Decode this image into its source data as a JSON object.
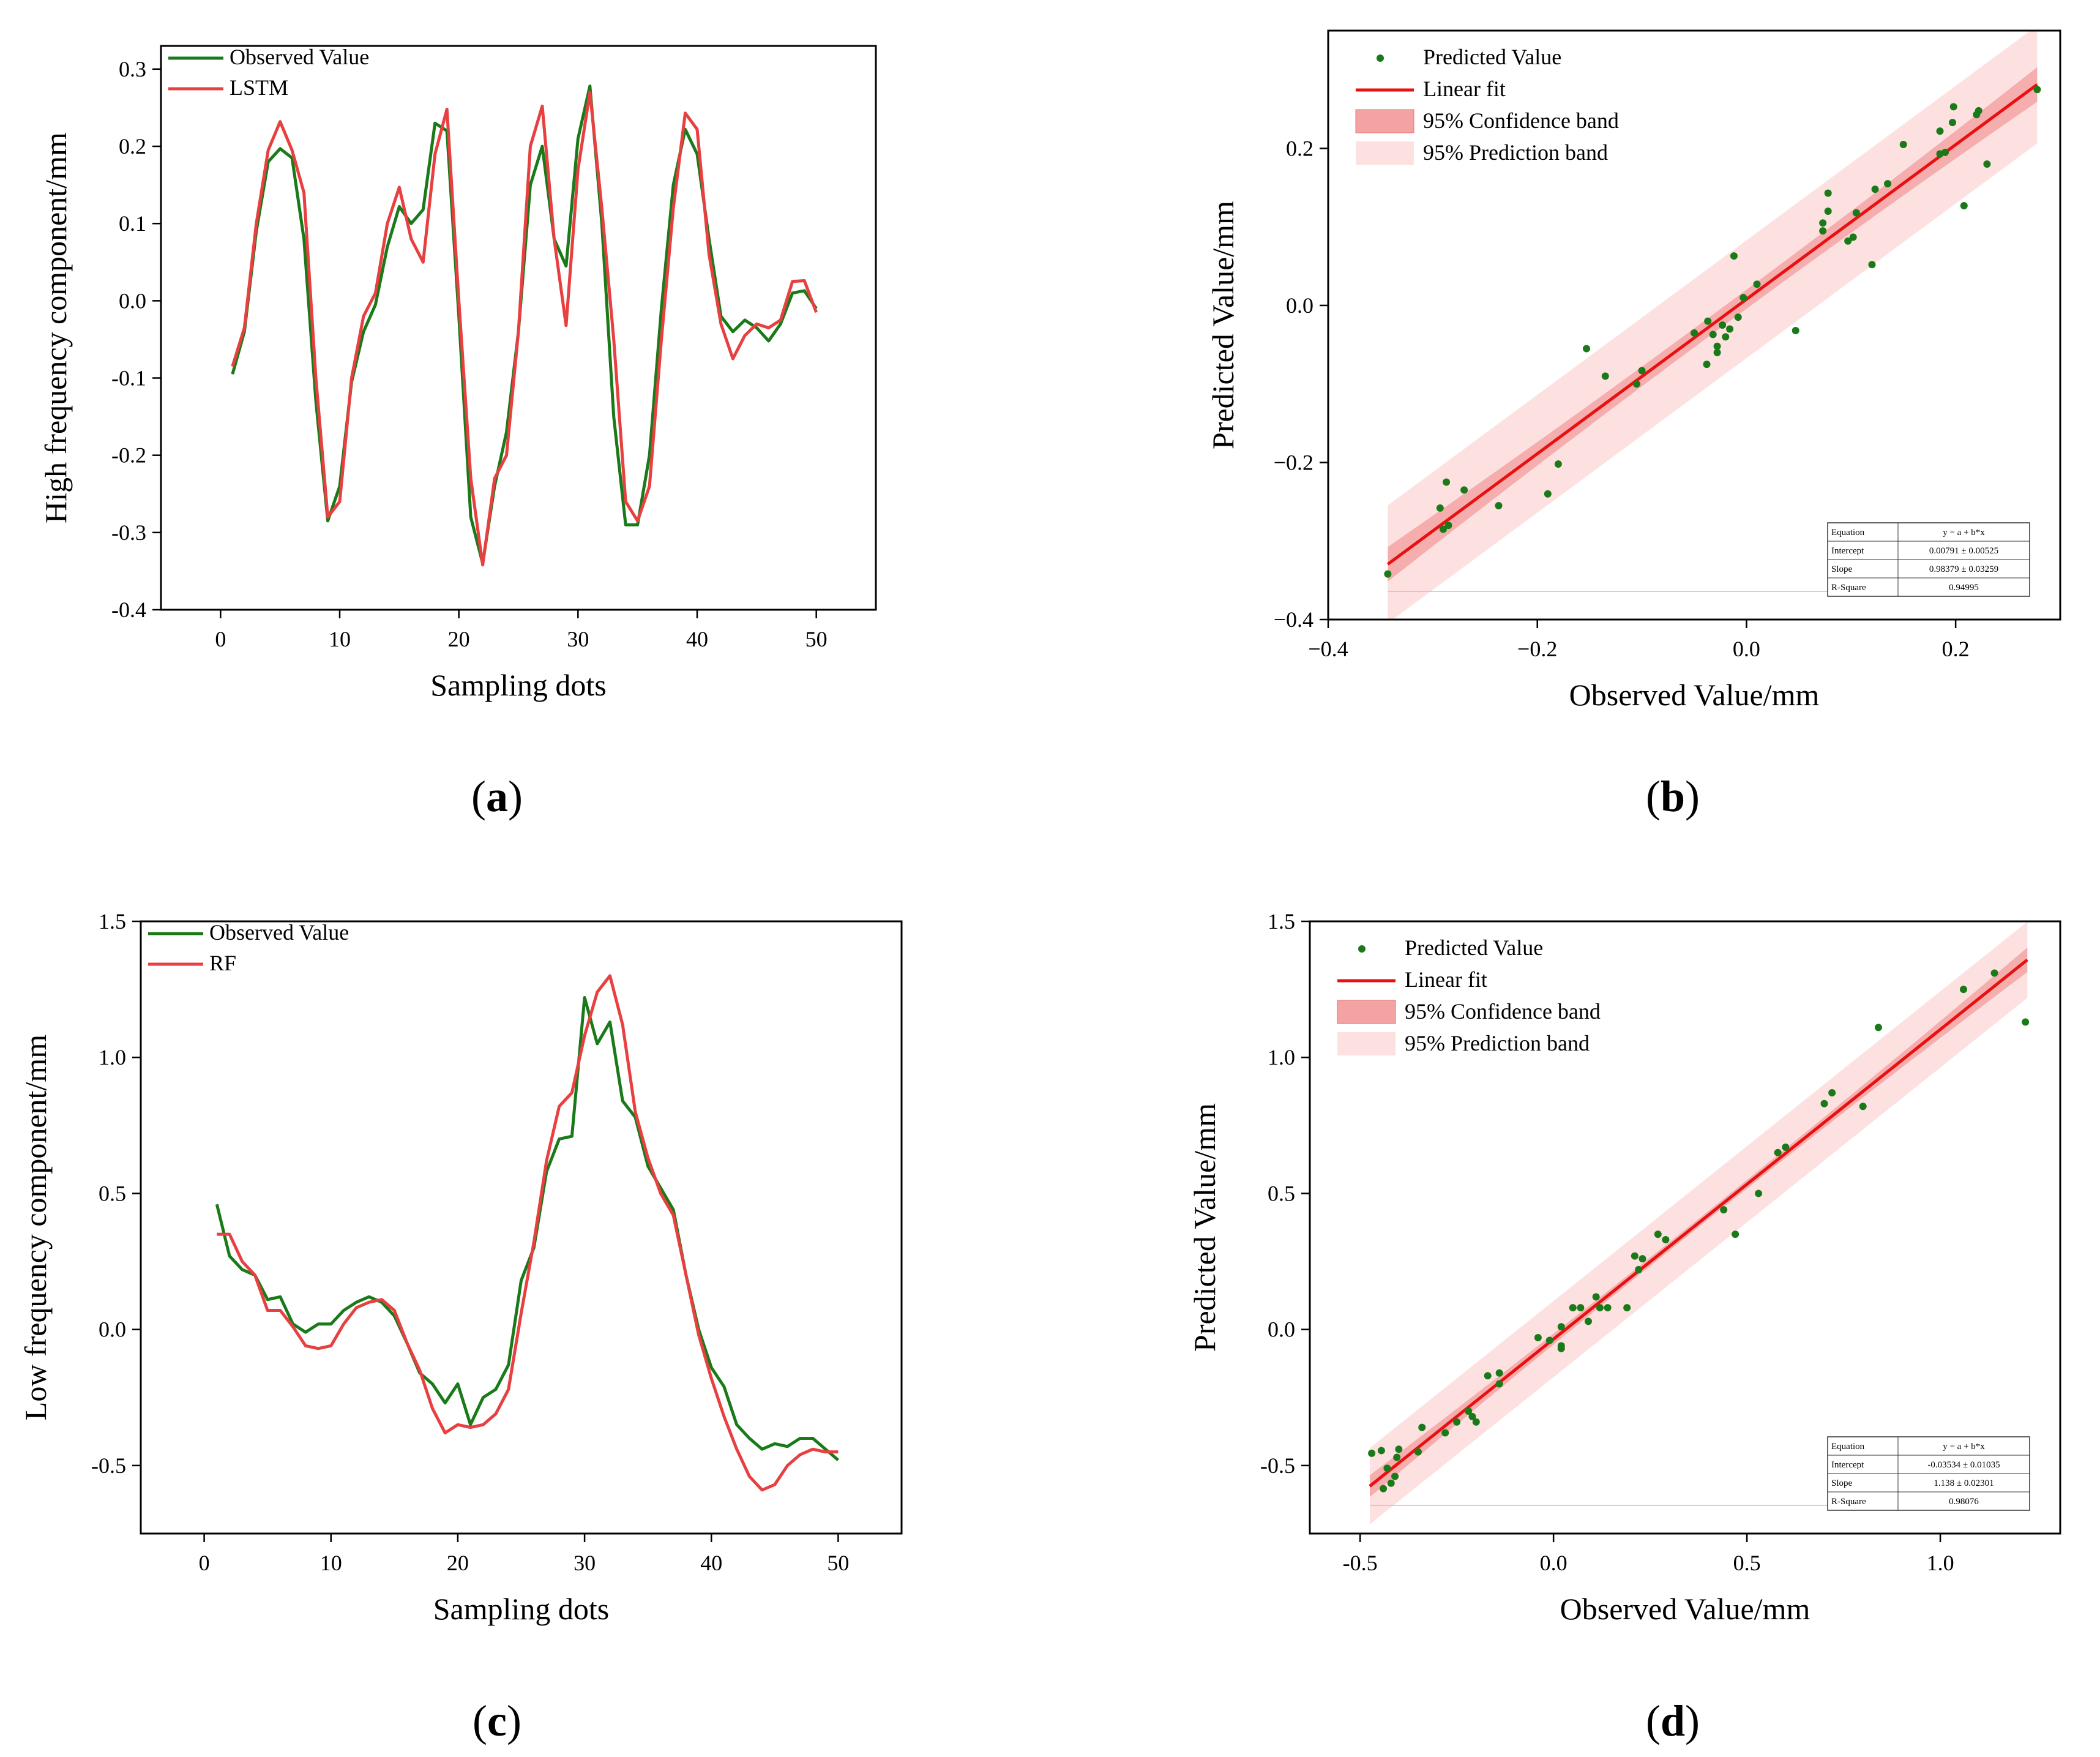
{
  "chart_data": [
    {
      "id": "a",
      "type": "line",
      "panel_label": "(a)",
      "panel_letter": "a",
      "xlabel": "Sampling dots",
      "ylabel": "High frequency component/mm",
      "xlim": [
        -5,
        55
      ],
      "ylim": [
        -0.4,
        0.33
      ],
      "xticks": [
        0,
        10,
        20,
        30,
        40,
        50
      ],
      "yticks": [
        -0.4,
        -0.3,
        -0.2,
        -0.1,
        0.0,
        0.1,
        0.2,
        0.3
      ],
      "ytick_labels": [
        "-0.4",
        "-0.3",
        "-0.2",
        "-0.1",
        "0.0",
        "0.1",
        "0.2",
        "0.3"
      ],
      "x": [
        1,
        2,
        3,
        4,
        5,
        6,
        7,
        8,
        9,
        10,
        11,
        12,
        13,
        14,
        15,
        16,
        17,
        18,
        19,
        20,
        21,
        22,
        23,
        24,
        25,
        26,
        27,
        28,
        29,
        30,
        31,
        32,
        33,
        34,
        35,
        36,
        37,
        38,
        39,
        40,
        41,
        42,
        43,
        44,
        45,
        46,
        47,
        48,
        49,
        50
      ],
      "series": [
        {
          "name": "Observed Value",
          "color": "#1a7a1a",
          "values": [
            -0.095,
            -0.04,
            0.09,
            0.18,
            0.197,
            0.185,
            0.08,
            -0.13,
            -0.285,
            -0.24,
            -0.105,
            -0.04,
            -0.005,
            0.07,
            0.122,
            0.1,
            0.118,
            0.23,
            0.22,
            -0.02,
            -0.28,
            -0.34,
            -0.24,
            -0.17,
            -0.04,
            0.15,
            0.2,
            0.08,
            0.045,
            0.21,
            0.278,
            0.1,
            -0.15,
            -0.29,
            -0.29,
            -0.2,
            -0.01,
            0.15,
            0.222,
            0.19,
            0.08,
            -0.02,
            -0.04,
            -0.025,
            -0.035,
            -0.052,
            -0.03,
            0.01,
            0.013,
            -0.01
          ]
        },
        {
          "name": "LSTM",
          "color": "#e84040",
          "values": [
            -0.085,
            -0.035,
            0.1,
            0.195,
            0.232,
            0.195,
            0.14,
            -0.1,
            -0.28,
            -0.26,
            -0.1,
            -0.02,
            0.01,
            0.1,
            0.147,
            0.08,
            0.05,
            0.19,
            0.248,
            0.0,
            -0.23,
            -0.342,
            -0.23,
            -0.2,
            -0.04,
            0.2,
            0.252,
            0.08,
            -0.032,
            0.17,
            0.27,
            0.12,
            -0.05,
            -0.26,
            -0.285,
            -0.24,
            -0.05,
            0.12,
            0.243,
            0.222,
            0.06,
            -0.03,
            -0.075,
            -0.045,
            -0.03,
            -0.035,
            -0.025,
            0.025,
            0.026,
            -0.015
          ]
        }
      ]
    },
    {
      "id": "b",
      "type": "scatter",
      "panel_label": "(b)",
      "panel_letter": "b",
      "xlabel": "Observed Value/mm",
      "ylabel": "Predicted Value/mm",
      "xlim": [
        -0.4,
        0.3
      ],
      "ylim": [
        -0.4,
        0.35
      ],
      "xticks": [
        -0.4,
        -0.2,
        0.0,
        0.2
      ],
      "xtick_labels": [
        "−0.4",
        "−0.2",
        "0.0",
        "0.2"
      ],
      "yticks": [
        -0.4,
        -0.2,
        0.0,
        0.2
      ],
      "ytick_labels": [
        "−0.4",
        "−0.2",
        "0.0",
        "0.2"
      ],
      "fit": {
        "intercept": 0.00791,
        "slope": 0.98379,
        "x_range": [
          -0.343,
          0.278
        ],
        "conf_half": [
          0.022,
          0.012,
          0.022
        ],
        "pred_half": 0.075
      },
      "legend": [
        "Predicted Value",
        "Linear fit",
        "95% Confidence band",
        "95% Prediction band"
      ],
      "colors": {
        "points": "#1a7a1a",
        "fit": "#e81010",
        "conf": "#f4a3a3",
        "pred": "#fde0e0"
      },
      "stats_table": [
        [
          "Equation",
          "y = a + b*x"
        ],
        [
          "Intercept",
          "0.00791 ± 0.00525"
        ],
        [
          "Slope",
          "0.98379 ± 0.03259"
        ],
        [
          "R-Square",
          "0.94995"
        ]
      ],
      "points": [
        [
          -0.343,
          -0.342
        ],
        [
          -0.29,
          -0.285
        ],
        [
          -0.285,
          -0.28
        ],
        [
          -0.293,
          -0.258
        ],
        [
          -0.287,
          -0.225
        ],
        [
          -0.27,
          -0.235
        ],
        [
          -0.237,
          -0.255
        ],
        [
          -0.19,
          -0.24
        ],
        [
          -0.18,
          -0.202
        ],
        [
          -0.153,
          -0.055
        ],
        [
          -0.135,
          -0.09
        ],
        [
          -0.105,
          -0.1
        ],
        [
          -0.1,
          -0.083
        ],
        [
          -0.05,
          -0.035
        ],
        [
          -0.038,
          -0.075
        ],
        [
          -0.037,
          -0.02
        ],
        [
          -0.032,
          -0.037
        ],
        [
          -0.028,
          -0.052
        ],
        [
          -0.028,
          -0.06
        ],
        [
          -0.023,
          -0.025
        ],
        [
          -0.02,
          -0.04
        ],
        [
          -0.016,
          -0.03
        ],
        [
          -0.012,
          0.063
        ],
        [
          -0.008,
          -0.015
        ],
        [
          -0.003,
          0.01
        ],
        [
          0.01,
          0.027
        ],
        [
          0.047,
          -0.032
        ],
        [
          0.073,
          0.095
        ],
        [
          0.073,
          0.105
        ],
        [
          0.078,
          0.143
        ],
        [
          0.078,
          0.12
        ],
        [
          0.097,
          0.082
        ],
        [
          0.102,
          0.087
        ],
        [
          0.105,
          0.118
        ],
        [
          0.12,
          0.052
        ],
        [
          0.123,
          0.148
        ],
        [
          0.135,
          0.155
        ],
        [
          0.15,
          0.205
        ],
        [
          0.185,
          0.222
        ],
        [
          0.185,
          0.193
        ],
        [
          0.19,
          0.195
        ],
        [
          0.197,
          0.233
        ],
        [
          0.198,
          0.253
        ],
        [
          0.208,
          0.127
        ],
        [
          0.22,
          0.243
        ],
        [
          0.222,
          0.248
        ],
        [
          0.23,
          0.18
        ],
        [
          0.278,
          0.275
        ]
      ]
    },
    {
      "id": "c",
      "type": "line",
      "panel_label": "(c)",
      "panel_letter": "c",
      "xlabel": "Sampling dots",
      "ylabel": "Low frequency component/mm",
      "xlim": [
        -5,
        55
      ],
      "ylim": [
        -0.75,
        1.5
      ],
      "xticks": [
        0,
        10,
        20,
        30,
        40,
        50
      ],
      "yticks": [
        -0.5,
        0.0,
        0.5,
        1.0,
        1.5
      ],
      "ytick_labels": [
        "-0.5",
        "0.0",
        "0.5",
        "1.0",
        "1.5"
      ],
      "x": [
        1,
        2,
        3,
        4,
        5,
        6,
        7,
        8,
        9,
        10,
        11,
        12,
        13,
        14,
        15,
        16,
        17,
        18,
        19,
        20,
        21,
        22,
        23,
        24,
        25,
        26,
        27,
        28,
        29,
        30,
        31,
        32,
        33,
        34,
        35,
        36,
        37,
        38,
        39,
        40,
        41,
        42,
        43,
        44,
        45,
        46,
        47,
        48,
        49,
        50
      ],
      "series": [
        {
          "name": "Observed Value",
          "color": "#1a7a1a",
          "values": [
            0.46,
            0.27,
            0.22,
            0.2,
            0.11,
            0.12,
            0.02,
            -0.01,
            0.02,
            0.02,
            0.07,
            0.1,
            0.12,
            0.1,
            0.05,
            -0.05,
            -0.16,
            -0.2,
            -0.27,
            -0.2,
            -0.35,
            -0.25,
            -0.22,
            -0.13,
            0.18,
            0.3,
            0.58,
            0.7,
            0.71,
            1.22,
            1.05,
            1.13,
            0.84,
            0.78,
            0.6,
            0.52,
            0.44,
            0.2,
            0.0,
            -0.14,
            -0.21,
            -0.35,
            -0.4,
            -0.44,
            -0.42,
            -0.43,
            -0.4,
            -0.4,
            -0.44,
            -0.48
          ]
        },
        {
          "name": "RF",
          "color": "#e84040",
          "values": [
            0.35,
            0.35,
            0.25,
            0.2,
            0.07,
            0.07,
            0.01,
            -0.06,
            -0.07,
            -0.06,
            0.02,
            0.08,
            0.1,
            0.11,
            0.07,
            -0.05,
            -0.15,
            -0.29,
            -0.38,
            -0.35,
            -0.36,
            -0.35,
            -0.31,
            -0.22,
            0.06,
            0.32,
            0.62,
            0.82,
            0.87,
            1.08,
            1.24,
            1.3,
            1.12,
            0.8,
            0.63,
            0.5,
            0.42,
            0.2,
            -0.02,
            -0.18,
            -0.32,
            -0.44,
            -0.54,
            -0.59,
            -0.57,
            -0.5,
            -0.46,
            -0.44,
            -0.45,
            -0.45
          ]
        }
      ]
    },
    {
      "id": "d",
      "type": "scatter",
      "panel_label": "(d)",
      "panel_letter": "d",
      "xlabel": "Observed Value/mm",
      "ylabel": "Predicted Value/mm",
      "xlim": [
        -0.63,
        1.31
      ],
      "ylim": [
        -0.75,
        1.5
      ],
      "xticks": [
        -0.5,
        0.0,
        0.5,
        1.0
      ],
      "xtick_labels": [
        "-0.5",
        "0.0",
        "0.5",
        "1.0"
      ],
      "yticks": [
        -0.5,
        0.0,
        0.5,
        1.0,
        1.5
      ],
      "ytick_labels": [
        "-0.5",
        "0.0",
        "0.5",
        "1.0",
        "1.5"
      ],
      "fit": {
        "intercept": -0.03534,
        "slope": 1.138,
        "x_range": [
          -0.475,
          1.225
        ],
        "conf_half": [
          0.04,
          0.015,
          0.045
        ],
        "pred_half": 0.14
      },
      "legend": [
        "Predicted Value",
        "Linear fit",
        "95% Confidence band",
        "95% Prediction band"
      ],
      "colors": {
        "points": "#1a7a1a",
        "fit": "#e81010",
        "conf": "#f4a3a3",
        "pred": "#fde0e0"
      },
      "stats_table": [
        [
          "Equation",
          "y = a + b*x"
        ],
        [
          "Intercept",
          "-0.03534 ± 0.01035"
        ],
        [
          "Slope",
          "1.138 ± 0.02301"
        ],
        [
          "R-Square",
          "0.98076"
        ]
      ],
      "points": [
        [
          -0.47,
          -0.455
        ],
        [
          -0.445,
          -0.445
        ],
        [
          -0.44,
          -0.585
        ],
        [
          -0.43,
          -0.51
        ],
        [
          -0.42,
          -0.565
        ],
        [
          -0.41,
          -0.54
        ],
        [
          -0.405,
          -0.47
        ],
        [
          -0.4,
          -0.44
        ],
        [
          -0.35,
          -0.45
        ],
        [
          -0.34,
          -0.36
        ],
        [
          -0.28,
          -0.38
        ],
        [
          -0.25,
          -0.34
        ],
        [
          -0.22,
          -0.3
        ],
        [
          -0.21,
          -0.32
        ],
        [
          -0.2,
          -0.34
        ],
        [
          -0.17,
          -0.17
        ],
        [
          -0.14,
          -0.16
        ],
        [
          -0.14,
          -0.2
        ],
        [
          -0.04,
          -0.03
        ],
        [
          -0.01,
          -0.04
        ],
        [
          0.02,
          -0.07
        ],
        [
          0.02,
          -0.06
        ],
        [
          0.02,
          0.01
        ],
        [
          0.05,
          0.08
        ],
        [
          0.07,
          0.08
        ],
        [
          0.09,
          0.03
        ],
        [
          0.11,
          0.12
        ],
        [
          0.12,
          0.08
        ],
        [
          0.14,
          0.08
        ],
        [
          0.19,
          0.08
        ],
        [
          0.21,
          0.27
        ],
        [
          0.22,
          0.22
        ],
        [
          0.23,
          0.26
        ],
        [
          0.27,
          0.35
        ],
        [
          0.29,
          0.33
        ],
        [
          0.44,
          0.44
        ],
        [
          0.47,
          0.35
        ],
        [
          0.53,
          0.5
        ],
        [
          0.58,
          0.65
        ],
        [
          0.6,
          0.67
        ],
        [
          0.7,
          0.83
        ],
        [
          0.72,
          0.87
        ],
        [
          0.8,
          0.82
        ],
        [
          0.84,
          1.11
        ],
        [
          1.06,
          1.25
        ],
        [
          1.14,
          1.31
        ],
        [
          1.22,
          1.13
        ]
      ]
    }
  ]
}
